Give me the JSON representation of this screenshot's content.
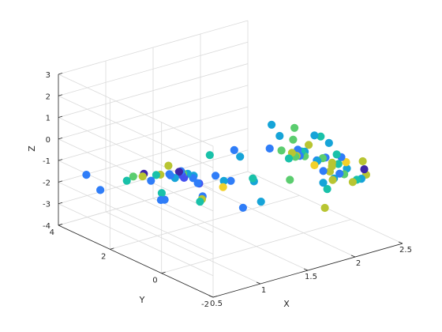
{
  "chart_data": {
    "type": "scatter",
    "title": "",
    "xlabel": "X",
    "ylabel": "Y",
    "zlabel": "Z",
    "xlim": [
      0.5,
      2.5
    ],
    "ylim": [
      -2,
      4
    ],
    "zlim": [
      -4,
      3
    ],
    "xticks": [
      "0.5",
      "1",
      "1.5",
      "2",
      "2.5"
    ],
    "yticks": [
      "-2",
      "0",
      "2",
      "4"
    ],
    "zticks": [
      "-4",
      "-3",
      "-2",
      "-1",
      "0",
      "1",
      "2",
      "3"
    ],
    "grid": true,
    "colormap": [
      "#3e26a8",
      "#4450f0",
      "#2f7df8",
      "#16a4d8",
      "#19c1a9",
      "#5bcd6f",
      "#b8c532",
      "#f3d12a",
      "#f9fb0e"
    ],
    "points": [
      {
        "x": 1.17,
        "y": 1.0,
        "z": -1.23,
        "c": 0.1
      },
      {
        "x": 0.52,
        "y": 2.99,
        "z": -1.12,
        "c": 0.3
      },
      {
        "x": 1.07,
        "y": 1.79,
        "z": -1.11,
        "c": 0.2
      },
      {
        "x": 1.17,
        "y": 1.78,
        "z": -1.12,
        "c": 0.05
      },
      {
        "x": 0.83,
        "y": 2.31,
        "z": -1.21,
        "c": 0.6
      },
      {
        "x": 0.85,
        "y": 2.02,
        "z": -1.07,
        "c": 0.8
      },
      {
        "x": 0.97,
        "y": 1.77,
        "z": -1.0,
        "c": 0.7
      },
      {
        "x": 0.91,
        "y": 2.19,
        "z": -1.12,
        "c": 0.0
      },
      {
        "x": 1.12,
        "y": 1.26,
        "z": -0.86,
        "c": 0.4
      },
      {
        "x": 1.11,
        "y": 1.4,
        "z": -0.92,
        "c": 0.6
      },
      {
        "x": 1.28,
        "y": 0.77,
        "z": -0.88,
        "c": 0.3
      },
      {
        "x": 1.08,
        "y": 1.33,
        "z": -0.93,
        "c": 0.1
      },
      {
        "x": 1.09,
        "y": 1.41,
        "z": -0.79,
        "c": 0.2
      },
      {
        "x": 1.42,
        "y": -0.16,
        "z": -0.66,
        "c": 0.5
      },
      {
        "x": 1.12,
        "y": 1.03,
        "z": -0.82,
        "c": 0.4
      },
      {
        "x": 0.97,
        "y": 1.46,
        "z": -0.41,
        "c": 0.7
      },
      {
        "x": 1.05,
        "y": 1.68,
        "z": -1.08,
        "c": 0.3
      },
      {
        "x": 0.82,
        "y": 2.52,
        "z": -1.51,
        "c": 0.5
      },
      {
        "x": 1.11,
        "y": 1.72,
        "z": -1.3,
        "c": 0.4
      },
      {
        "x": 1.37,
        "y": 0.81,
        "z": -1.54,
        "c": 0.9
      },
      {
        "x": 0.96,
        "y": 2.1,
        "z": -1.45,
        "c": 0.2
      },
      {
        "x": 1.1,
        "y": 1.33,
        "z": -1.06,
        "c": 0.1
      },
      {
        "x": 1.34,
        "y": 0.67,
        "z": -1.14,
        "c": 0.4
      },
      {
        "x": 1.22,
        "y": 1.24,
        "z": -1.41,
        "c": 0.3
      },
      {
        "x": 1.49,
        "y": 0.05,
        "z": -1.0,
        "c": 0.4
      },
      {
        "x": 0.98,
        "y": 1.97,
        "z": -1.14,
        "c": 0.5
      },
      {
        "x": 1.39,
        "y": 0.58,
        "z": -1.15,
        "c": 0.3
      },
      {
        "x": 1.2,
        "y": 1.35,
        "z": -1.21,
        "c": 0.2
      },
      {
        "x": 0.73,
        "y": 3.22,
        "z": -2.22,
        "c": 0.2
      },
      {
        "x": 1.08,
        "y": 2.01,
        "z": -2.43,
        "c": 0.2
      },
      {
        "x": 1.24,
        "y": 1.15,
        "z": -2.13,
        "c": 0.8
      },
      {
        "x": 1.03,
        "y": 1.94,
        "z": -2.02,
        "c": 0.5
      },
      {
        "x": 1.52,
        "y": -0.11,
        "z": -1.89,
        "c": 0.4
      },
      {
        "x": 1.26,
        "y": 1.3,
        "z": -2.35,
        "c": 0.5
      },
      {
        "x": 1.48,
        "y": 0.44,
        "z": -2.43,
        "c": 0.3
      },
      {
        "x": 1.89,
        "y": -1.23,
        "z": -2.02,
        "c": 0.7
      },
      {
        "x": 1.0,
        "y": 1.86,
        "z": -2.26,
        "c": 0.2
      },
      {
        "x": 1.26,
        "y": 1.2,
        "z": -2.05,
        "c": 0.3
      },
      {
        "x": 1.95,
        "y": -1.1,
        "z": -1.29,
        "c": 0.5
      },
      {
        "x": 1.64,
        "y": -0.79,
        "z": -0.65,
        "c": 0.6
      },
      {
        "x": 1.85,
        "y": -1.31,
        "z": -0.76,
        "c": 0.4
      },
      {
        "x": 1.29,
        "y": 1.03,
        "z": -0.08,
        "c": 0.5
      },
      {
        "x": 1.46,
        "y": 0.48,
        "z": -0.06,
        "c": 0.4
      },
      {
        "x": 1.92,
        "y": -1.4,
        "z": 0.13,
        "c": 0.7
      },
      {
        "x": 1.39,
        "y": 0.45,
        "z": 0.35,
        "c": 0.2
      },
      {
        "x": 1.59,
        "y": -0.19,
        "z": 0.53,
        "c": 0.2
      },
      {
        "x": 1.75,
        "y": -0.77,
        "z": 0.31,
        "c": 0.2
      },
      {
        "x": 1.99,
        "y": -1.5,
        "z": 0.36,
        "c": 0.3
      },
      {
        "x": 1.69,
        "y": -0.21,
        "z": 1.0,
        "c": 0.4
      },
      {
        "x": 1.83,
        "y": -0.27,
        "z": 1.23,
        "c": 0.6
      },
      {
        "x": 1.64,
        "y": -0.08,
        "z": 1.51,
        "c": 0.4
      },
      {
        "x": 1.88,
        "y": -0.86,
        "z": 1.15,
        "c": 0.4
      },
      {
        "x": 1.71,
        "y": -0.66,
        "z": 1.05,
        "c": 0.6
      },
      {
        "x": 1.93,
        "y": -0.92,
        "z": 1.07,
        "c": 0.5
      },
      {
        "x": 1.99,
        "y": -1.02,
        "z": 0.75,
        "c": 0.4
      },
      {
        "x": 1.63,
        "y": -0.5,
        "z": 0.56,
        "c": 0.6
      },
      {
        "x": 1.73,
        "y": -0.54,
        "z": 0.35,
        "c": 0.8
      },
      {
        "x": 1.73,
        "y": -0.42,
        "z": 0.02,
        "c": 0.5
      },
      {
        "x": 1.81,
        "y": -0.63,
        "z": 0.36,
        "c": 0.5
      },
      {
        "x": 1.86,
        "y": -0.71,
        "z": 0.65,
        "c": 0.7
      },
      {
        "x": 1.77,
        "y": -0.62,
        "z": 0.49,
        "c": 0.3
      },
      {
        "x": 1.8,
        "y": -0.78,
        "z": 0.45,
        "c": 0.4
      },
      {
        "x": 1.9,
        "y": -0.88,
        "z": -0.02,
        "c": 0.3
      },
      {
        "x": 1.96,
        "y": -1.0,
        "z": 0.1,
        "c": 0.3
      },
      {
        "x": 1.76,
        "y": -0.61,
        "z": 0.21,
        "c": 0.8
      },
      {
        "x": 1.86,
        "y": -0.56,
        "z": 0.04,
        "c": 0.6
      },
      {
        "x": 1.91,
        "y": -0.75,
        "z": -0.33,
        "c": 0.9
      },
      {
        "x": 1.99,
        "y": -0.78,
        "z": -0.09,
        "c": 0.6
      },
      {
        "x": 1.95,
        "y": -0.72,
        "z": -0.2,
        "c": 0.4
      },
      {
        "x": 2.08,
        "y": -0.99,
        "z": 0.09,
        "c": 0.5
      },
      {
        "x": 2.0,
        "y": -1.1,
        "z": -0.3,
        "c": 0.7
      },
      {
        "x": 2.2,
        "y": -1.56,
        "z": -0.06,
        "c": 0.7
      },
      {
        "x": 2.04,
        "y": -1.2,
        "z": -0.19,
        "c": 0.5
      },
      {
        "x": 2.13,
        "y": -1.2,
        "z": -0.51,
        "c": 0.4
      },
      {
        "x": 1.79,
        "y": -0.45,
        "z": 0.04,
        "c": 0.6
      },
      {
        "x": 2.08,
        "y": -1.1,
        "z": -0.74,
        "c": 0.3
      },
      {
        "x": 1.99,
        "y": -0.8,
        "z": -0.67,
        "c": 0.2
      },
      {
        "x": 2.01,
        "y": -0.98,
        "z": -0.62,
        "c": 0.8
      },
      {
        "x": 2.08,
        "y": -1.28,
        "z": -0.67,
        "c": 0.6
      },
      {
        "x": 2.0,
        "y": -1.18,
        "z": -0.82,
        "c": 0.4
      },
      {
        "x": 2.21,
        "y": -1.47,
        "z": -0.93,
        "c": 0.4
      },
      {
        "x": 2.21,
        "y": -1.58,
        "z": -0.43,
        "c": 0.0
      },
      {
        "x": 2.23,
        "y": -1.58,
        "z": -0.71,
        "c": 0.7
      },
      {
        "x": 2.18,
        "y": -1.4,
        "z": -0.98,
        "c": 0.5
      },
      {
        "x": 2.01,
        "y": -1.09,
        "z": -0.95,
        "c": 0.7
      },
      {
        "x": 2.17,
        "y": -1.28,
        "z": -1.14,
        "c": 0.8
      },
      {
        "x": 2.1,
        "y": -1.28,
        "z": -0.13,
        "c": 0.9
      }
    ]
  }
}
